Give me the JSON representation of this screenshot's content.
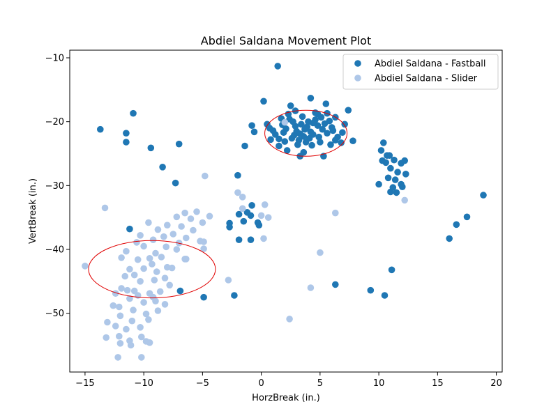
{
  "chart_data": {
    "type": "scatter",
    "title": "Abdiel Saldana Movement Plot",
    "xlabel": "HorzBreak (in.)",
    "ylabel": "VertBreak (in.)",
    "xlim": [
      -16.3,
      20.5
    ],
    "ylim": [
      -59.2,
      -8.8
    ],
    "x_ticks": [
      -15,
      -10,
      -5,
      0,
      5,
      10,
      15,
      20
    ],
    "y_ticks": [
      -10,
      -20,
      -30,
      -40,
      -50
    ],
    "x_tick_labels": [
      "−15",
      "−10",
      "−5",
      "0",
      "5",
      "10",
      "15",
      "20"
    ],
    "y_tick_labels": [
      "−10",
      "−20",
      "−30",
      "−40",
      "−50"
    ],
    "grid": false,
    "legend_position": "top-right",
    "series": [
      {
        "name": "Abdiel Saldana - Fastball",
        "color": "#1f77b4",
        "points": [
          [
            1.4,
            -11.3
          ],
          [
            0.2,
            -16.8
          ],
          [
            4.2,
            -16.3
          ],
          [
            2.5,
            -17.5
          ],
          [
            5.5,
            -17.2
          ],
          [
            7.4,
            -18.2
          ],
          [
            0.5,
            -20.4
          ],
          [
            -0.6,
            -21.6
          ],
          [
            0.8,
            -22.8
          ],
          [
            2.2,
            -24.5
          ],
          [
            3.3,
            -25.4
          ],
          [
            5.3,
            -25.4
          ],
          [
            6.8,
            -23.3
          ],
          [
            7.8,
            -23.0
          ],
          [
            3.6,
            -24.8
          ],
          [
            1.5,
            -23.8
          ],
          [
            -1.4,
            -23.8
          ],
          [
            -0.8,
            -20.6
          ],
          [
            1.7,
            -19.5
          ],
          [
            6.3,
            -19.3
          ],
          [
            2.9,
            -18.3
          ],
          [
            4.8,
            -18.8
          ],
          [
            5.6,
            -21.8
          ],
          [
            3.0,
            -21.5
          ],
          [
            4.4,
            -22.0
          ],
          [
            2.1,
            -21.1
          ],
          [
            4.0,
            -20.0
          ],
          [
            5.0,
            -23.2
          ],
          [
            3.5,
            -19.2
          ],
          [
            2.6,
            -22.6
          ],
          [
            6.0,
            -20.9
          ],
          [
            1.2,
            -22.0
          ],
          [
            3.8,
            -23.2
          ],
          [
            4.6,
            -19.7
          ],
          [
            2.9,
            -20.7
          ],
          [
            5.4,
            -20.3
          ],
          [
            1.8,
            -20.5
          ],
          [
            6.5,
            -22.4
          ],
          [
            3.2,
            -22.9
          ],
          [
            4.2,
            -21.6
          ],
          [
            2.4,
            -19.6
          ],
          [
            5.8,
            -19.9
          ],
          [
            3.9,
            -20.8
          ],
          [
            4.9,
            -22.4
          ],
          [
            2.0,
            -23.1
          ],
          [
            6.9,
            -21.7
          ],
          [
            3.3,
            -21.9
          ],
          [
            1.0,
            -21.4
          ],
          [
            4.6,
            -18.6
          ],
          [
            5.2,
            -21.2
          ],
          [
            2.7,
            -20.0
          ],
          [
            3.6,
            -22.3
          ],
          [
            6.3,
            -22.9
          ],
          [
            1.5,
            -22.7
          ],
          [
            4.3,
            -23.7
          ],
          [
            5.6,
            -18.7
          ],
          [
            7.1,
            -20.4
          ],
          [
            2.3,
            -18.8
          ],
          [
            0.7,
            -21.0
          ],
          [
            3.1,
            -23.6
          ],
          [
            4.8,
            -20.6
          ],
          [
            6.1,
            -21.4
          ],
          [
            2.8,
            -22.1
          ],
          [
            5.9,
            -23.6
          ],
          [
            3.4,
            -20.4
          ],
          [
            4.1,
            -22.6
          ],
          [
            1.9,
            -21.7
          ],
          [
            5.1,
            -19.3
          ],
          [
            3.7,
            -21.2
          ],
          [
            4.4,
            -20.2
          ],
          [
            10.2,
            -24.5
          ],
          [
            10.4,
            -23.3
          ],
          [
            10.9,
            -25.3
          ],
          [
            10.6,
            -26.4
          ],
          [
            11.3,
            -26.0
          ],
          [
            11.9,
            -26.5
          ],
          [
            12.2,
            -26.1
          ],
          [
            11.0,
            -27.3
          ],
          [
            11.6,
            -27.9
          ],
          [
            10.3,
            -26.1
          ],
          [
            12.3,
            -28.2
          ],
          [
            11.4,
            -29.1
          ],
          [
            11.9,
            -29.8
          ],
          [
            10.8,
            -28.8
          ],
          [
            11.2,
            -30.3
          ],
          [
            11.5,
            -31.1
          ],
          [
            10.0,
            -29.8
          ],
          [
            12.0,
            -30.2
          ],
          [
            11.0,
            -31.0
          ],
          [
            10.7,
            -25.3
          ],
          [
            -13.7,
            -21.2
          ],
          [
            -11.5,
            -21.8
          ],
          [
            -11.5,
            -23.2
          ],
          [
            -10.9,
            -18.7
          ],
          [
            -9.4,
            -24.1
          ],
          [
            -8.4,
            -27.1
          ],
          [
            -7.0,
            -23.5
          ],
          [
            -7.3,
            -29.6
          ],
          [
            -11.2,
            -36.8
          ],
          [
            -2.0,
            -28.4
          ],
          [
            -2.7,
            -35.9
          ],
          [
            -2.7,
            -36.5
          ],
          [
            -1.9,
            -34.5
          ],
          [
            -1.2,
            -34.2
          ],
          [
            -1.5,
            -35.6
          ],
          [
            -0.9,
            -34.7
          ],
          [
            -0.8,
            -33.1
          ],
          [
            -0.3,
            -35.8
          ],
          [
            -0.2,
            -36.2
          ],
          [
            -1.9,
            -38.5
          ],
          [
            -0.9,
            -38.5
          ],
          [
            -6.9,
            -46.5
          ],
          [
            -4.9,
            -47.5
          ],
          [
            -2.3,
            -47.2
          ],
          [
            6.3,
            -45.5
          ],
          [
            9.3,
            -46.4
          ],
          [
            10.5,
            -47.2
          ],
          [
            11.1,
            -43.2
          ],
          [
            16.0,
            -38.3
          ],
          [
            16.6,
            -36.1
          ],
          [
            17.5,
            -34.9
          ],
          [
            18.9,
            -31.5
          ]
        ]
      },
      {
        "name": "Abdiel Saldana - Slider",
        "color": "#aec7e8",
        "points": [
          [
            2.0,
            -20.1
          ],
          [
            -4.8,
            -28.5
          ],
          [
            -2.0,
            -31.1
          ],
          [
            -1.6,
            -31.8
          ],
          [
            -1.6,
            -33.6
          ],
          [
            -13.3,
            -33.5
          ],
          [
            -15.0,
            -42.6
          ],
          [
            -7.2,
            -34.9
          ],
          [
            -6.5,
            -34.3
          ],
          [
            -5.5,
            -34.1
          ],
          [
            -4.4,
            -34.8
          ],
          [
            -5.0,
            -35.8
          ],
          [
            -6.0,
            -35.2
          ],
          [
            -6.8,
            -36.4
          ],
          [
            -8.0,
            -36.2
          ],
          [
            -8.8,
            -36.9
          ],
          [
            -9.6,
            -35.8
          ],
          [
            -10.3,
            -37.8
          ],
          [
            -9.2,
            -38.5
          ],
          [
            -8.3,
            -38.0
          ],
          [
            -7.5,
            -37.6
          ],
          [
            -6.4,
            -38.2
          ],
          [
            -5.2,
            -38.7
          ],
          [
            -4.9,
            -39.9
          ],
          [
            -6.4,
            -41.5
          ],
          [
            -7.2,
            -40.0
          ],
          [
            -8.1,
            -39.6
          ],
          [
            -9.0,
            -40.6
          ],
          [
            -10.0,
            -39.5
          ],
          [
            -10.6,
            -38.9
          ],
          [
            -11.5,
            -40.3
          ],
          [
            -10.5,
            -41.6
          ],
          [
            -9.3,
            -42.3
          ],
          [
            -8.5,
            -41.2
          ],
          [
            -7.6,
            -42.9
          ],
          [
            -8.9,
            -43.5
          ],
          [
            -10.0,
            -43.0
          ],
          [
            -11.2,
            -43.1
          ],
          [
            -11.9,
            -41.3
          ],
          [
            -11.6,
            -44.2
          ],
          [
            -10.3,
            -45.0
          ],
          [
            -9.1,
            -44.8
          ],
          [
            -8.2,
            -44.5
          ],
          [
            -7.8,
            -45.6
          ],
          [
            -8.6,
            -46.6
          ],
          [
            -9.5,
            -46.9
          ],
          [
            -10.8,
            -46.5
          ],
          [
            -11.9,
            -46.1
          ],
          [
            -12.4,
            -46.9
          ],
          [
            -11.2,
            -47.7
          ],
          [
            -10.0,
            -48.3
          ],
          [
            -9.0,
            -48.1
          ],
          [
            -8.2,
            -48.6
          ],
          [
            -8.8,
            -49.6
          ],
          [
            -9.8,
            -50.1
          ],
          [
            -10.9,
            -49.5
          ],
          [
            -12.1,
            -49.0
          ],
          [
            -12.6,
            -48.8
          ],
          [
            -12.0,
            -50.4
          ],
          [
            -11.0,
            -51.2
          ],
          [
            -9.6,
            -51.0
          ],
          [
            -10.3,
            -52.2
          ],
          [
            -11.5,
            -52.5
          ],
          [
            -12.4,
            -52.0
          ],
          [
            -13.1,
            -51.4
          ],
          [
            -12.1,
            -53.6
          ],
          [
            -11.2,
            -54.3
          ],
          [
            -10.2,
            -53.7
          ],
          [
            -9.5,
            -54.6
          ],
          [
            -12.0,
            -54.7
          ],
          [
            -13.2,
            -53.8
          ],
          [
            -11.1,
            -55.0
          ],
          [
            -12.2,
            -56.9
          ],
          [
            -10.2,
            -56.9
          ],
          [
            -9.8,
            -54.4
          ],
          [
            -6.5,
            -41.5
          ],
          [
            -8.0,
            -42.8
          ],
          [
            -9.5,
            -41.4
          ],
          [
            -7.0,
            -39.0
          ],
          [
            -5.8,
            -37.0
          ],
          [
            -4.9,
            -38.8
          ],
          [
            -10.8,
            -44.0
          ],
          [
            -11.4,
            -46.4
          ],
          [
            -10.5,
            -47.2
          ],
          [
            -9.2,
            -47.5
          ],
          [
            0.3,
            -33.0
          ],
          [
            0.0,
            -34.7
          ],
          [
            0.6,
            -35.0
          ],
          [
            0.2,
            -38.3
          ],
          [
            -2.8,
            -44.8
          ],
          [
            2.4,
            -50.9
          ],
          [
            4.2,
            -46.0
          ],
          [
            5.0,
            -40.5
          ],
          [
            6.3,
            -34.3
          ],
          [
            12.2,
            -32.3
          ]
        ]
      }
    ],
    "ellipses": [
      {
        "cx": 3.8,
        "cy": -21.8,
        "rx": 3.5,
        "ry": 3.6,
        "color": "#e00000"
      },
      {
        "cx": -9.3,
        "cy": -43.1,
        "rx": 5.4,
        "ry": 4.5,
        "color": "#e00000"
      }
    ]
  }
}
